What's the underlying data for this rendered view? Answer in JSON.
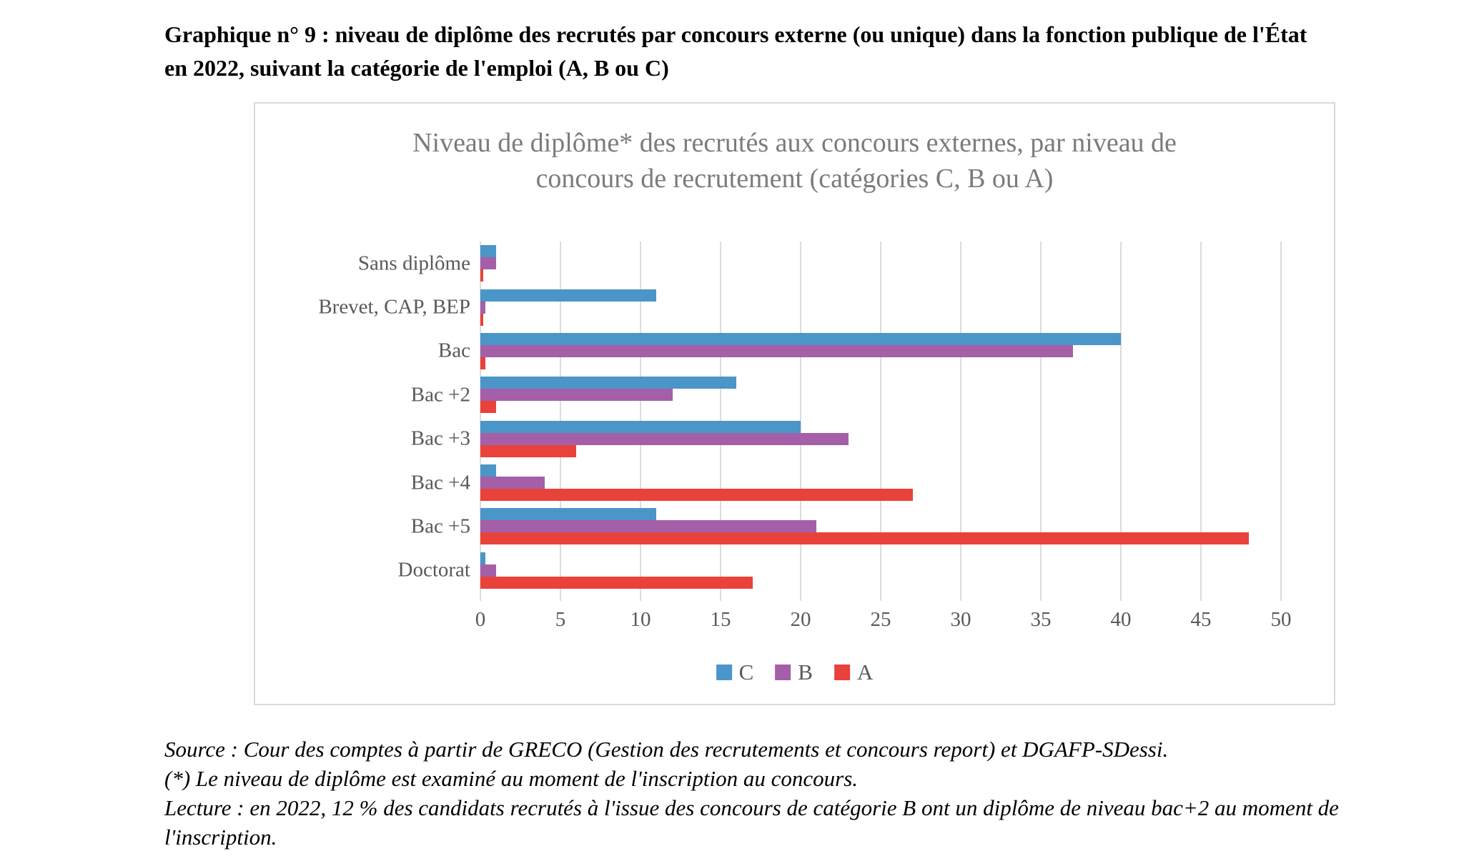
{
  "page": {
    "heading": "Graphique n° 9 : niveau de diplôme des recrutés par concours externe (ou unique) dans la fonction publique de l'État en 2022, suivant la catégorie de l'emploi (A, B ou C)",
    "footer_lines": [
      "Source : Cour des comptes à partir de GRECO (Gestion des recrutements et concours report) et DGAFP-SDessi.",
      "(*) Le niveau de diplôme est examiné au moment de l'inscription au concours.",
      "Lecture : en 2022, 12 % des candidats recrutés à l'issue des concours de catégorie B ont un diplôme de niveau bac+2 au moment de l'inscription."
    ]
  },
  "chart_data": {
    "type": "bar",
    "orientation": "horizontal",
    "title": "Niveau de diplôme* des recrutés aux concours externes, par niveau de concours de recrutement (catégories C, B ou A)",
    "categories": [
      "Sans diplôme",
      "Brevet, CAP, BEP",
      "Bac",
      "Bac +2",
      "Bac +3",
      "Bac +4",
      "Bac +5",
      "Doctorat"
    ],
    "series": [
      {
        "name": "C",
        "color": "#4a96c8",
        "values": [
          1,
          11,
          40,
          16,
          20,
          1,
          11,
          0.3
        ]
      },
      {
        "name": "B",
        "color": "#a55fa8",
        "values": [
          1,
          0.3,
          37,
          12,
          23,
          4,
          21,
          1
        ]
      },
      {
        "name": "A",
        "color": "#e8423b",
        "values": [
          0.2,
          0.2,
          0.3,
          1,
          6,
          27,
          48,
          17
        ]
      }
    ],
    "xlabel": "",
    "ylabel": "",
    "xlim": [
      0,
      50
    ],
    "xticks": [
      0,
      5,
      10,
      15,
      20,
      25,
      30,
      35,
      40,
      45,
      50
    ],
    "grid": true,
    "legend_position": "bottom",
    "grid_color": "#dcdcdc",
    "title_color": "#7b7b7b",
    "label_color": "#595959"
  }
}
